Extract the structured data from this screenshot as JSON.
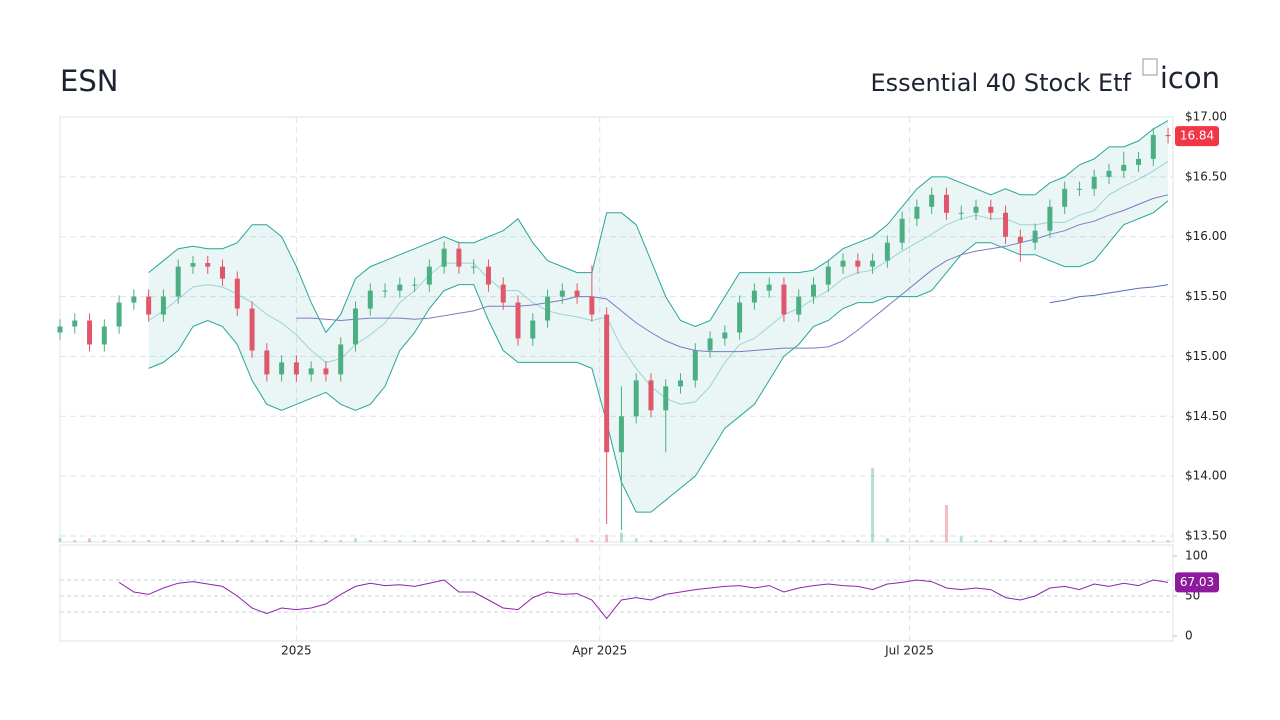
{
  "chart_data": [
    {
      "type": "candlestick",
      "title": "ESN",
      "subtitle": "Essential 40 Stock Etf",
      "logo_alt": "icon",
      "x": [
        0,
        3,
        6,
        9,
        12,
        15,
        18,
        21,
        24,
        27,
        30,
        33,
        36,
        39,
        42,
        45,
        48,
        51,
        54,
        57,
        60,
        63,
        66,
        69,
        72,
        75,
        78,
        81,
        84,
        87,
        90,
        93,
        96,
        99,
        102,
        105,
        108,
        111,
        114,
        117,
        120,
        123,
        126,
        129,
        132,
        135,
        138,
        141,
        144,
        147,
        150,
        153,
        156,
        159,
        162,
        165,
        168,
        171,
        174,
        177,
        180,
        183,
        186,
        189,
        192,
        195,
        198,
        201,
        204,
        207,
        210,
        213,
        216,
        219,
        222,
        225
      ],
      "open": [
        15.2,
        15.25,
        15.3,
        15.1,
        15.25,
        15.45,
        15.5,
        15.35,
        15.5,
        15.75,
        15.78,
        15.75,
        15.65,
        15.4,
        15.05,
        14.85,
        14.95,
        14.85,
        14.9,
        14.85,
        15.1,
        15.4,
        15.55,
        15.55,
        15.6,
        15.6,
        15.75,
        15.9,
        15.75,
        15.75,
        15.6,
        15.45,
        15.15,
        15.3,
        15.5,
        15.55,
        15.5,
        15.35,
        14.2,
        14.5,
        14.8,
        14.55,
        14.75,
        14.8,
        15.05,
        15.15,
        15.2,
        15.45,
        15.55,
        15.6,
        15.35,
        15.5,
        15.6,
        15.75,
        15.8,
        15.75,
        15.8,
        15.95,
        16.15,
        16.25,
        16.35,
        16.2,
        16.2,
        16.25,
        16.2,
        16.0,
        15.95,
        16.05,
        16.25,
        16.4,
        16.4,
        16.5,
        16.55,
        16.6,
        16.65,
        16.85
      ],
      "high": [
        15.31,
        15.36,
        15.36,
        15.31,
        15.51,
        15.56,
        15.56,
        15.56,
        15.81,
        15.84,
        15.84,
        15.81,
        15.71,
        15.46,
        15.11,
        15.01,
        15.01,
        14.96,
        14.96,
        15.16,
        15.46,
        15.61,
        15.61,
        15.66,
        15.66,
        15.81,
        15.96,
        15.96,
        15.81,
        15.81,
        15.66,
        15.51,
        15.36,
        15.56,
        15.61,
        15.61,
        15.76,
        15.41,
        14.75,
        14.86,
        14.86,
        14.81,
        14.86,
        15.11,
        15.21,
        15.26,
        15.51,
        15.61,
        15.66,
        15.66,
        15.56,
        15.66,
        15.81,
        15.86,
        15.86,
        15.86,
        16.01,
        16.21,
        16.31,
        16.41,
        16.41,
        16.26,
        16.31,
        16.31,
        16.26,
        16.06,
        16.11,
        16.31,
        16.46,
        16.46,
        16.56,
        16.61,
        16.71,
        16.71,
        16.91,
        16.91
      ],
      "low": [
        15.14,
        15.19,
        15.04,
        15.04,
        15.19,
        15.39,
        15.29,
        15.29,
        15.44,
        15.69,
        15.69,
        15.59,
        15.34,
        14.99,
        14.79,
        14.79,
        14.79,
        14.79,
        14.79,
        14.79,
        15.04,
        15.34,
        15.49,
        15.49,
        15.54,
        15.54,
        15.69,
        15.69,
        15.69,
        15.54,
        15.39,
        15.09,
        15.09,
        15.24,
        15.44,
        15.44,
        15.29,
        13.6,
        13.55,
        14.44,
        14.49,
        14.2,
        14.69,
        14.74,
        14.99,
        15.09,
        15.14,
        15.39,
        15.49,
        15.29,
        15.29,
        15.44,
        15.54,
        15.69,
        15.69,
        15.69,
        15.74,
        15.89,
        16.09,
        16.19,
        16.14,
        16.14,
        16.14,
        16.14,
        15.94,
        15.79,
        15.89,
        15.99,
        16.19,
        16.34,
        16.34,
        16.44,
        16.49,
        16.54,
        16.59,
        16.78
      ],
      "close": [
        15.25,
        15.3,
        15.1,
        15.25,
        15.45,
        15.5,
        15.35,
        15.5,
        15.75,
        15.78,
        15.75,
        15.65,
        15.4,
        15.05,
        14.85,
        14.95,
        14.85,
        14.9,
        14.85,
        15.1,
        15.4,
        15.55,
        15.55,
        15.6,
        15.6,
        15.75,
        15.9,
        15.75,
        15.75,
        15.6,
        15.45,
        15.15,
        15.3,
        15.5,
        15.55,
        15.5,
        15.35,
        14.2,
        14.5,
        14.8,
        14.55,
        14.75,
        14.8,
        15.05,
        15.15,
        15.2,
        15.45,
        15.55,
        15.6,
        15.35,
        15.5,
        15.6,
        15.75,
        15.8,
        15.75,
        15.8,
        15.95,
        16.15,
        16.25,
        16.35,
        16.2,
        16.2,
        16.25,
        16.2,
        16.0,
        15.95,
        16.05,
        16.25,
        16.4,
        16.4,
        16.5,
        16.55,
        16.6,
        16.65,
        16.85,
        16.84
      ],
      "volume": [
        2,
        1,
        2,
        1,
        1,
        1,
        1,
        1,
        1,
        1,
        1,
        1,
        1,
        1,
        1,
        1,
        1,
        1,
        1,
        1,
        2,
        1,
        1,
        1,
        1,
        1,
        1,
        1,
        1,
        1,
        1,
        1,
        1,
        1,
        1,
        2,
        1,
        4,
        5,
        2,
        1,
        1,
        1,
        1,
        1,
        1,
        1,
        1,
        1,
        1,
        1,
        1,
        1,
        1,
        1,
        40,
        2,
        1,
        1,
        1,
        20,
        3,
        1,
        1,
        1,
        1,
        1,
        1,
        1,
        1,
        1,
        1,
        1,
        1,
        1,
        1
      ],
      "band": {
        "color": "#26a69a",
        "upper": [
          null,
          null,
          null,
          null,
          null,
          null,
          15.7,
          15.8,
          15.9,
          15.92,
          15.9,
          15.9,
          15.95,
          16.1,
          16.1,
          16.0,
          15.75,
          15.45,
          15.2,
          15.35,
          15.65,
          15.75,
          15.8,
          15.85,
          15.9,
          15.95,
          16.0,
          15.95,
          15.95,
          16.0,
          16.05,
          16.15,
          15.95,
          15.8,
          15.75,
          15.7,
          15.7,
          16.2,
          16.2,
          16.1,
          15.8,
          15.5,
          15.3,
          15.25,
          15.3,
          15.5,
          15.7,
          15.7,
          15.7,
          15.7,
          15.7,
          15.72,
          15.8,
          15.9,
          15.95,
          16.0,
          16.1,
          16.25,
          16.4,
          16.5,
          16.5,
          16.45,
          16.4,
          16.35,
          16.4,
          16.35,
          16.35,
          16.45,
          16.5,
          16.6,
          16.65,
          16.75,
          16.75,
          16.8,
          16.9,
          16.97
        ],
        "middle": [
          null,
          null,
          null,
          null,
          null,
          null,
          15.3,
          15.38,
          15.48,
          15.58,
          15.6,
          15.58,
          15.52,
          15.45,
          15.35,
          15.28,
          15.18,
          15.05,
          14.95,
          14.98,
          15.1,
          15.18,
          15.28,
          15.45,
          15.55,
          15.68,
          15.78,
          15.78,
          15.78,
          15.65,
          15.55,
          15.55,
          15.45,
          15.38,
          15.35,
          15.33,
          15.3,
          15.33,
          15.08,
          14.9,
          14.75,
          14.65,
          14.6,
          14.62,
          14.75,
          14.95,
          15.1,
          15.15,
          15.25,
          15.35,
          15.4,
          15.48,
          15.55,
          15.65,
          15.7,
          15.72,
          15.8,
          15.88,
          15.95,
          16.02,
          16.1,
          16.15,
          16.18,
          16.15,
          16.15,
          16.1,
          16.1,
          16.12,
          16.12,
          16.18,
          16.22,
          16.35,
          16.42,
          16.48,
          16.55,
          16.63
        ],
        "lower": [
          null,
          null,
          null,
          null,
          null,
          null,
          14.9,
          14.95,
          15.05,
          15.25,
          15.3,
          15.25,
          15.1,
          14.8,
          14.6,
          14.55,
          14.6,
          14.65,
          14.7,
          14.6,
          14.55,
          14.6,
          14.75,
          15.05,
          15.2,
          15.4,
          15.55,
          15.6,
          15.6,
          15.3,
          15.05,
          14.95,
          14.95,
          14.95,
          14.95,
          14.95,
          14.9,
          14.45,
          13.95,
          13.7,
          13.7,
          13.8,
          13.9,
          14.0,
          14.2,
          14.4,
          14.5,
          14.6,
          14.8,
          15.0,
          15.1,
          15.25,
          15.3,
          15.4,
          15.45,
          15.45,
          15.5,
          15.5,
          15.5,
          15.55,
          15.7,
          15.85,
          15.95,
          15.95,
          15.9,
          15.85,
          15.85,
          15.8,
          15.75,
          15.75,
          15.8,
          15.95,
          16.1,
          16.15,
          16.2,
          16.3
        ]
      },
      "lines": [
        {
          "color": "#7b7bc4",
          "values": [
            null,
            null,
            null,
            null,
            null,
            null,
            null,
            null,
            null,
            null,
            null,
            null,
            null,
            null,
            null,
            null,
            15.32,
            15.32,
            15.31,
            15.3,
            15.31,
            15.32,
            15.32,
            15.32,
            15.31,
            15.32,
            15.34,
            15.36,
            15.38,
            15.42,
            15.42,
            15.42,
            15.43,
            15.45,
            15.47,
            15.5,
            15.5,
            15.48,
            15.38,
            15.28,
            15.2,
            15.13,
            15.08,
            15.05,
            15.04,
            15.04,
            15.04,
            15.05,
            15.06,
            15.07,
            15.07,
            15.07,
            15.08,
            15.13,
            15.22,
            15.32,
            15.42,
            15.52,
            15.62,
            15.72,
            15.8,
            15.85,
            15.88,
            15.9,
            15.92,
            15.95,
            15.98,
            16.02,
            16.05,
            16.1,
            16.13,
            16.18,
            16.22,
            16.27,
            16.32,
            16.35
          ]
        },
        {
          "color": "#5b6bbf",
          "values": [
            null,
            null,
            null,
            null,
            null,
            null,
            null,
            null,
            null,
            null,
            null,
            null,
            null,
            null,
            null,
            null,
            null,
            null,
            null,
            null,
            null,
            null,
            null,
            null,
            null,
            null,
            null,
            null,
            null,
            null,
            null,
            null,
            null,
            null,
            null,
            null,
            null,
            null,
            null,
            null,
            null,
            null,
            null,
            null,
            null,
            null,
            null,
            null,
            null,
            null,
            null,
            null,
            null,
            null,
            null,
            null,
            null,
            null,
            null,
            null,
            null,
            null,
            null,
            null,
            null,
            null,
            null,
            15.45,
            15.47,
            15.5,
            15.51,
            15.53,
            15.55,
            15.57,
            15.58,
            15.6
          ]
        }
      ],
      "up_color": "#4caf82",
      "down_color": "#e0566a",
      "tag_color": "#f23645",
      "xlim": [
        0,
        226
      ],
      "ylim": [
        13.45,
        17.0
      ],
      "yticks": [
        {
          "value": 13.5,
          "label": "$13.50"
        },
        {
          "value": 14,
          "label": "$14.00"
        },
        {
          "value": 14.5,
          "label": "$14.50"
        },
        {
          "value": 15,
          "label": "$15.00"
        },
        {
          "value": 15.5,
          "label": "$15.50"
        },
        {
          "value": 16,
          "label": "$16.00"
        },
        {
          "value": 16.5,
          "label": "$16.50"
        },
        {
          "value": 17,
          "label": "$17.00"
        }
      ],
      "grid": true
    },
    {
      "type": "line",
      "color": "#8e24aa",
      "tag_color": "#8e1a9e",
      "values": [
        null,
        null,
        null,
        null,
        67,
        55,
        52,
        60,
        66,
        68,
        65,
        62,
        50,
        35,
        28,
        35,
        33,
        35,
        40,
        52,
        62,
        66,
        63,
        64,
        62,
        66,
        70,
        55,
        55,
        45,
        35,
        33,
        48,
        55,
        52,
        53,
        45,
        22,
        45,
        48,
        45,
        52,
        55,
        58,
        60,
        62,
        63,
        60,
        63,
        55,
        60,
        63,
        65,
        63,
        62,
        58,
        65,
        67,
        70,
        68,
        60,
        58,
        60,
        58,
        48,
        45,
        50,
        60,
        62,
        58,
        65,
        62,
        66,
        63,
        70,
        67.03
      ],
      "ylim": [
        -6.25,
        113.75
      ],
      "yticks": [
        0,
        50,
        100
      ],
      "levels": [
        30,
        50,
        70
      ],
      "xticks": [
        {
          "value": 48,
          "label": "2025"
        },
        {
          "value": 109.6,
          "label": "Apr 2025"
        },
        {
          "value": 172.5,
          "label": "Jul 2025"
        }
      ]
    }
  ]
}
